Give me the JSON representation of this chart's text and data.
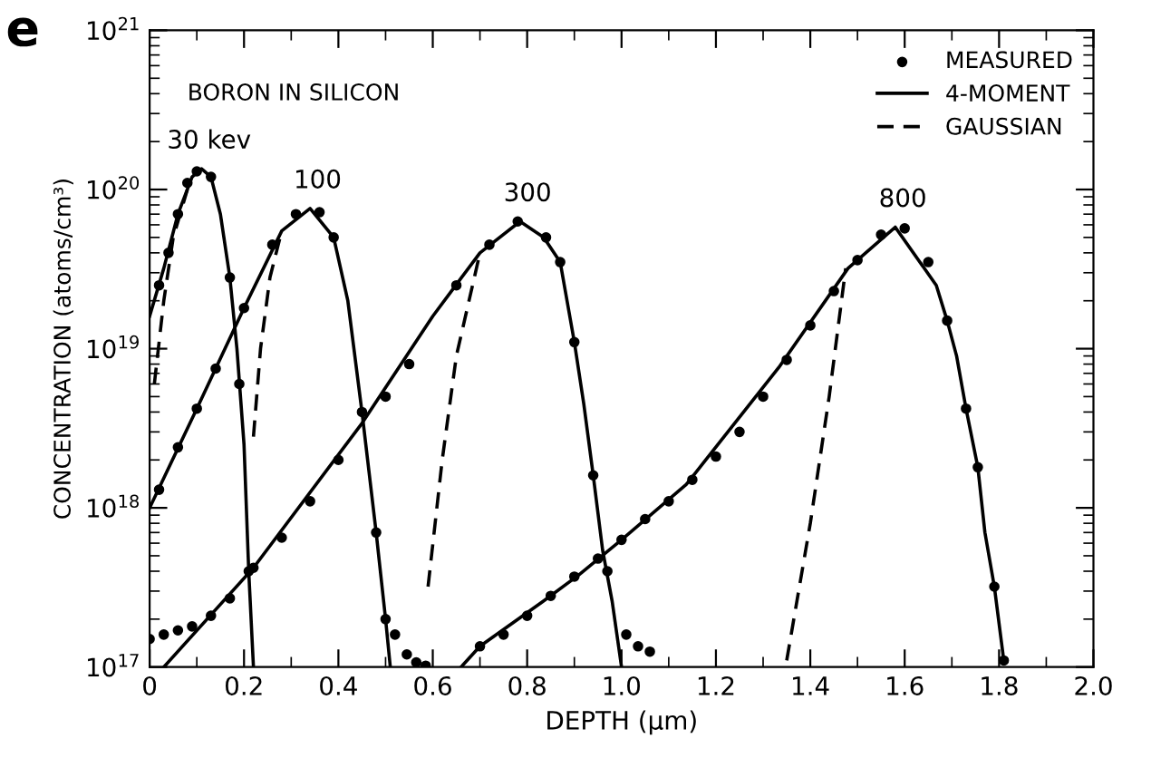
{
  "chart_data": {
    "type": "line",
    "xlabel": "DEPTH (μm)",
    "ylabel": "CONCENTRATION (atoms/cm³)",
    "log": "y",
    "xlim": [
      0,
      2.0
    ],
    "ylim": [
      1e+17,
      1e+21
    ],
    "xticks": [
      0,
      0.2,
      0.4,
      0.6,
      0.8,
      {
        "value": 1.0,
        "label": "1.0"
      },
      1.2,
      1.4,
      1.6,
      1.8,
      {
        "value": 2.0,
        "label": "2.0"
      }
    ],
    "yticks": [
      {
        "value": 1e+17,
        "label": "10$^{17}$"
      },
      {
        "value": 1e+18,
        "label": "10$^{18}$"
      },
      {
        "value": 1e+19,
        "label": "10$^{19}$"
      },
      {
        "value": 1e+20,
        "label": "10$^{20}$"
      },
      {
        "value": 1e+21,
        "label": "10$^{21}$"
      }
    ],
    "grid": false,
    "legend": "top right",
    "annotations": [
      "e",
      "BORON IN SILICON",
      {
        "text": "30 kev",
        "x": 0.11,
        "y": 1.35e+20
      },
      {
        "text": "100",
        "x": 0.34,
        "y": 7.6e+19
      },
      {
        "text": "300",
        "x": 0.785,
        "y": 6.3e+19
      },
      {
        "text": "800",
        "x": 1.58,
        "y": 5.8e+19
      }
    ],
    "series": [
      {
        "type": "scatter",
        "name": "MEASURED",
        "color": "#000000",
        "marker": "circle",
        "x": [
          0.02,
          0.04,
          0.06,
          0.08,
          0.1,
          0.13,
          0.17,
          0.19,
          0.21,
          0.02,
          0.06,
          0.1,
          0.14,
          0.2,
          0.26,
          0.31,
          0.36,
          0.39,
          0.45,
          0.48,
          0.5,
          0.52,
          0.545,
          0.565,
          0.585,
          0,
          0.03,
          0.06,
          0.09,
          0.13,
          0.17,
          0.22,
          0.28,
          0.34,
          0.4,
          0.5,
          0.55,
          0.65,
          0.72,
          0.78,
          0.84,
          0.87,
          0.9,
          0.94,
          0.97,
          1.01,
          1.035,
          1.06,
          0.7,
          0.75,
          0.8,
          0.85,
          0.9,
          0.95,
          1.0,
          1.05,
          1.1,
          1.15,
          1.2,
          1.25,
          1.3,
          1.35,
          1.4,
          1.45,
          1.5,
          1.55,
          1.6,
          1.65,
          1.69,
          1.73,
          1.755,
          1.79,
          1.81
        ],
        "values": [
          2.5e+19,
          4e+19,
          7e+19,
          1.1e+20,
          1.3e+20,
          1.2e+20,
          2.8e+19,
          6e+18,
          4e+17,
          1.3e+18,
          2.4e+18,
          4.2e+18,
          7.5e+18,
          1.8e+19,
          4.5e+19,
          7e+19,
          7.2e+19,
          5e+19,
          4e+18,
          7e+17,
          2e+17,
          1.6e+17,
          1.2e+17,
          1.07e+17,
          1.02e+17,
          1.5e+17,
          1.6e+17,
          1.7e+17,
          1.8e+17,
          2.1e+17,
          2.7e+17,
          4.2e+17,
          6.5e+17,
          1.1e+18,
          2e+18,
          5e+18,
          8e+18,
          2.5e+19,
          4.5e+19,
          6.3e+19,
          5e+19,
          3.5e+19,
          1.1e+19,
          1.6e+18,
          4e+17,
          1.6e+17,
          1.35e+17,
          1.25e+17,
          1.35e+17,
          1.6e+17,
          2.1e+17,
          2.8e+17,
          3.7e+17,
          4.8e+17,
          6.3e+17,
          8.5e+17,
          1.1e+18,
          1.5e+18,
          2.1e+18,
          3e+18,
          5e+18,
          8.5e+18,
          1.4e+19,
          2.3e+19,
          3.6e+19,
          5.2e+19,
          5.7e+19,
          3.5e+19,
          1.5e+19,
          4.2e+18,
          1.8e+18,
          3.2e+17,
          1.1e+17
        ]
      },
      {
        "name": "4-MOMENT",
        "color": "#000000",
        "line_style": "solid",
        "x": [
          0,
          0.03,
          0.06,
          0.09,
          0.11,
          0.13,
          0.15,
          0.17,
          0.185,
          0.2,
          0.21,
          0.22
        ],
        "values": [
          1.6e+19,
          3.2e+19,
          7e+19,
          1.2e+20,
          1.35e+20,
          1.2e+20,
          7e+19,
          2.8e+19,
          1e+19,
          2.5e+18,
          4e+17,
          1e+17
        ]
      },
      {
        "color": "#000000",
        "line_style": "solid",
        "x": [
          0,
          0.1,
          0.2,
          0.28,
          0.34,
          0.39,
          0.42,
          0.45,
          0.48,
          0.5,
          0.51
        ],
        "values": [
          1e+18,
          4.2e+18,
          1.8e+19,
          5.5e+19,
          7.6e+19,
          5e+19,
          2e+19,
          4e+18,
          7e+17,
          2e+17,
          1e+17
        ]
      },
      {
        "color": "#000000",
        "line_style": "solid",
        "x": [
          0.03,
          0.22,
          0.45,
          0.6,
          0.7,
          0.785,
          0.835,
          0.87,
          0.9,
          0.92,
          0.94,
          0.96,
          0.98,
          1.0
        ],
        "values": [
          1e+17,
          4.2e+17,
          3.4e+18,
          1.6e+19,
          4e+19,
          6.3e+19,
          5e+19,
          3.5e+19,
          1.1e+19,
          4.5e+18,
          1.6e+18,
          5.4e+17,
          2.6e+17,
          1e+17
        ]
      },
      {
        "color": "#000000",
        "line_style": "solid",
        "x": [
          0.66,
          0.7,
          0.835,
          0.91,
          1.0,
          1.137,
          1.333,
          1.48,
          1.58,
          1.667,
          1.69,
          1.71,
          1.73,
          1.755,
          1.77,
          1.79,
          1.81
        ],
        "values": [
          1e+17,
          1.35e+17,
          2.6e+17,
          3.8e+17,
          6.3e+17,
          1.4e+18,
          7.6e+18,
          3.2e+19,
          5.8e+19,
          2.5e+19,
          1.5e+19,
          9e+18,
          4.2e+18,
          1.8e+18,
          7e+17,
          3.2e+17,
          1.1e+17
        ]
      },
      {
        "name": "GAUSSIAN",
        "color": "#000000",
        "line_style": "dashed",
        "x": [
          0.01,
          0.03,
          0.05,
          0.08
        ],
        "values": [
          6e+18,
          2e+19,
          5e+19,
          1e+20
        ]
      },
      {
        "color": "#000000",
        "line_style": "dashed",
        "x": [
          0.22,
          0.235,
          0.255,
          0.28
        ],
        "values": [
          2.8e+18,
          1e+19,
          2.8e+19,
          5.5e+19
        ]
      },
      {
        "color": "#000000",
        "line_style": "dashed",
        "x": [
          0.59,
          0.62,
          0.65,
          0.7
        ],
        "values": [
          3.2e+17,
          2e+18,
          9e+18,
          4e+19
        ]
      },
      {
        "color": "#000000",
        "line_style": "dashed",
        "x": [
          1.35,
          1.4,
          1.44,
          1.475
        ],
        "values": [
          1.1e+17,
          8e+17,
          5e+18,
          3.2e+19
        ]
      }
    ]
  }
}
